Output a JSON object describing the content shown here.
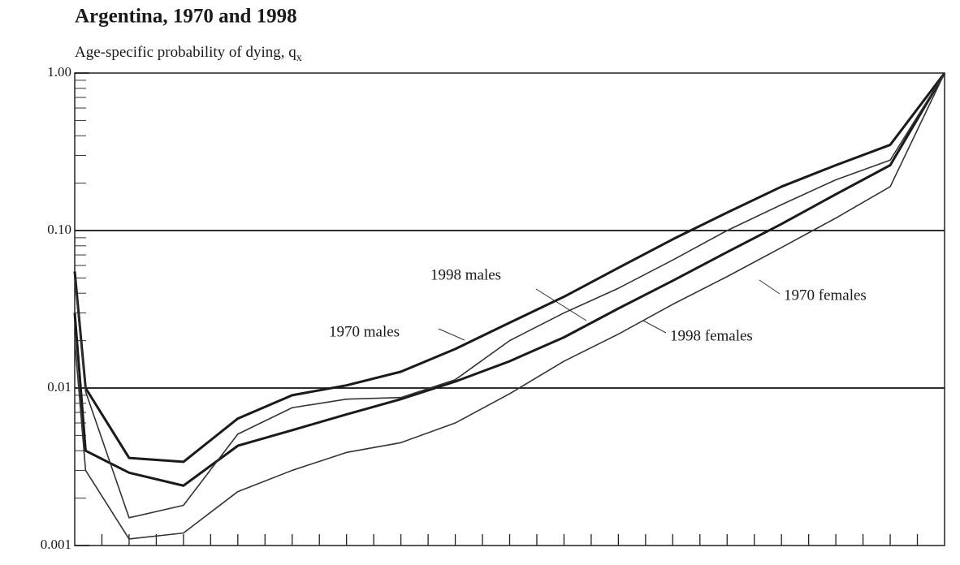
{
  "chart_data": {
    "type": "line",
    "title": "Argentina, 1970 and 1998",
    "subtitle": "Age-specific probability of dying, q",
    "subtitle_subscript": "x",
    "x": [
      0,
      1,
      5,
      10,
      15,
      20,
      25,
      30,
      35,
      40,
      45,
      50,
      55,
      60,
      65,
      70,
      75,
      80
    ],
    "xlim": [
      0,
      80
    ],
    "xticks": [
      2.5,
      5,
      7.5,
      10,
      12.5,
      15,
      17.5,
      20,
      22.5,
      25,
      27.5,
      30,
      32.5,
      35,
      37.5,
      40,
      42.5,
      45,
      47.5,
      50,
      52.5,
      55,
      57.5,
      60,
      62.5,
      65,
      67.5,
      70,
      72.5,
      75,
      77.5
    ],
    "log_y": true,
    "ylim": [
      0.001,
      1
    ],
    "yticks": [
      {
        "value": 0.001,
        "label": "0.001"
      },
      {
        "value": 0.01,
        "label": "0.01"
      },
      {
        "value": 0.1,
        "label": "0.10"
      },
      {
        "value": 1,
        "label": "1.00"
      }
    ],
    "grid": true,
    "series": [
      {
        "name": "1970 males",
        "color": "#1a1a1a",
        "line_width": 3,
        "values": [
          0.055,
          0.01,
          0.0036,
          0.0034,
          0.0064,
          0.009,
          0.0104,
          0.0127,
          0.0177,
          0.026,
          0.038,
          0.058,
          0.088,
          0.13,
          0.19,
          0.26,
          0.35,
          1.0
        ]
      },
      {
        "name": "1998 males",
        "color": "#1a1a1a",
        "line_width": 3,
        "values": [
          0.03,
          0.004,
          0.0029,
          0.0024,
          0.0043,
          0.0054,
          0.0068,
          0.0085,
          0.011,
          0.0148,
          0.021,
          0.032,
          0.048,
          0.073,
          0.11,
          0.17,
          0.26,
          1.0
        ]
      },
      {
        "name": "1970 females",
        "color": "#333333",
        "line_width": 1.6,
        "values": [
          0.05,
          0.0095,
          0.0015,
          0.0018,
          0.0051,
          0.0075,
          0.0085,
          0.0087,
          0.0113,
          0.02,
          0.03,
          0.043,
          0.065,
          0.1,
          0.146,
          0.21,
          0.28,
          1.0
        ]
      },
      {
        "name": "1998 females",
        "color": "#333333",
        "line_width": 1.6,
        "values": [
          0.02,
          0.003,
          0.0011,
          0.0012,
          0.0022,
          0.003,
          0.0039,
          0.0045,
          0.006,
          0.0092,
          0.0148,
          0.022,
          0.034,
          0.051,
          0.078,
          0.12,
          0.19,
          1.0
        ]
      }
    ]
  }
}
